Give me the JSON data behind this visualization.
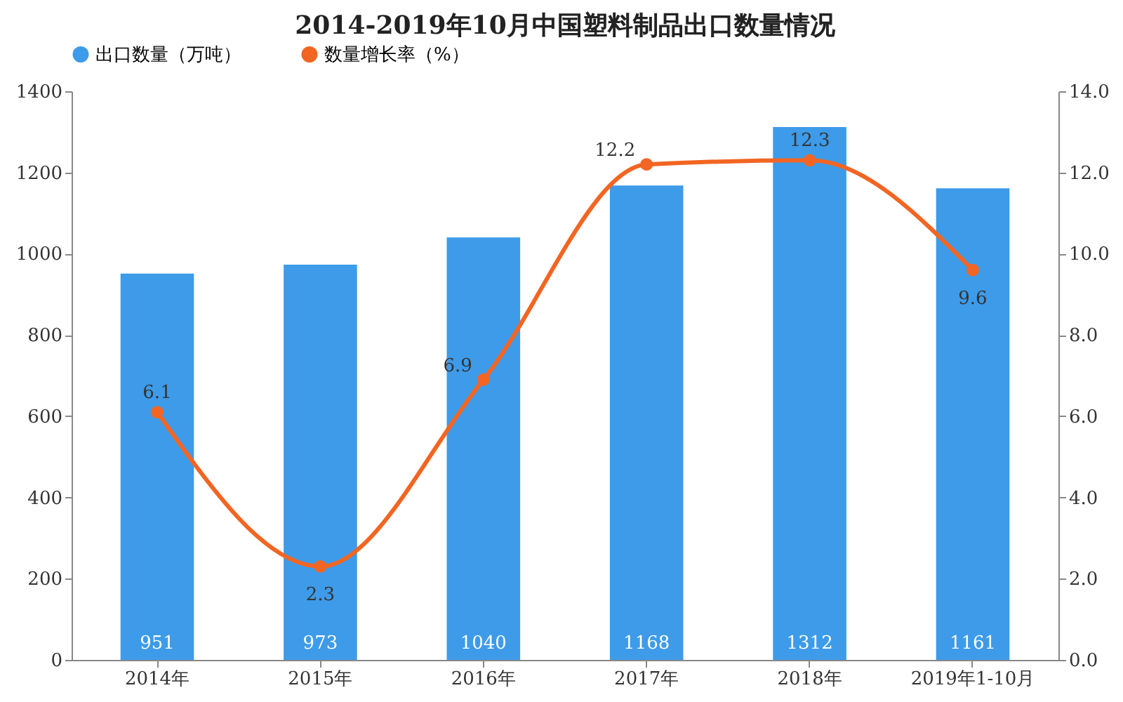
{
  "chart_data": {
    "type": "bar",
    "title": "2014-2019年10月中国塑料制品出口数量情况",
    "categories": [
      "2014年",
      "2015年",
      "2016年",
      "2017年",
      "2018年",
      "2019年1-10月"
    ],
    "series": [
      {
        "name": "出口数量（万吨）",
        "color": "#3d9be9",
        "values": [
          951,
          973,
          1040,
          1168,
          1312,
          1161
        ]
      },
      {
        "name": "数量增长率（%）",
        "type": "line",
        "axis": "y2",
        "color": "#f26522",
        "values": [
          6.1,
          2.3,
          6.9,
          12.2,
          12.3,
          9.6
        ]
      }
    ],
    "ylim": [
      0,
      1400
    ],
    "yticks": [
      0,
      200,
      400,
      600,
      800,
      1000,
      1200,
      1400
    ],
    "y2lim": [
      0,
      14
    ],
    "y2ticks": [
      {
        "value": 0,
        "label": "0.0"
      },
      {
        "value": 2,
        "label": "2.0"
      },
      {
        "value": 4,
        "label": "4.0"
      },
      {
        "value": 6,
        "label": "6.0"
      },
      {
        "value": 8,
        "label": "8.0"
      },
      {
        "value": 10,
        "label": "10.0"
      },
      {
        "value": 12,
        "label": "12.0"
      },
      {
        "value": 14,
        "label": "14.0"
      }
    ],
    "marker": "circle",
    "data_labels": true,
    "legend": "top",
    "grid": false
  }
}
